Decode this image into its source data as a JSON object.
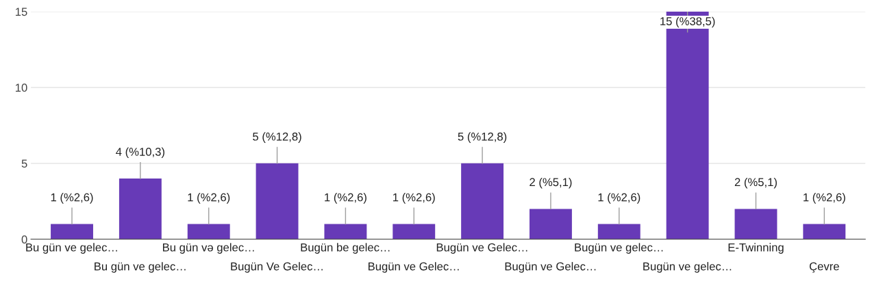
{
  "chart_data": {
    "type": "bar",
    "categories": [
      "Bu gün ve gelec…",
      "Bu gün ve gelec…",
      "Bu gün və gelec…",
      "Bugün Ve Gelec…",
      "Bugün be gelec…",
      "Bugün ve Gelec…",
      "Bugün ve Gelec…",
      "Bugün ve Gelec…",
      "Bugün ve gelec…",
      "Bugün ve gelec…",
      "E-Twinning",
      "Çevre"
    ],
    "values": [
      1,
      4,
      1,
      5,
      1,
      1,
      5,
      2,
      1,
      15,
      2,
      1
    ],
    "value_labels": [
      "1 (%2,6)",
      "4 (%10,3)",
      "1 (%2,6)",
      "5 (%12,8)",
      "1 (%2,6)",
      "1 (%2,6)",
      "5 (%12,8)",
      "2 (%5,1)",
      "1 (%2,6)",
      "15 (%38,5)",
      "2 (%5,1)",
      "1 (%2,6)"
    ],
    "color": "#673ab7",
    "ylim": [
      0,
      15
    ],
    "yticks": [
      0,
      5,
      10,
      15
    ],
    "grid": "y"
  }
}
